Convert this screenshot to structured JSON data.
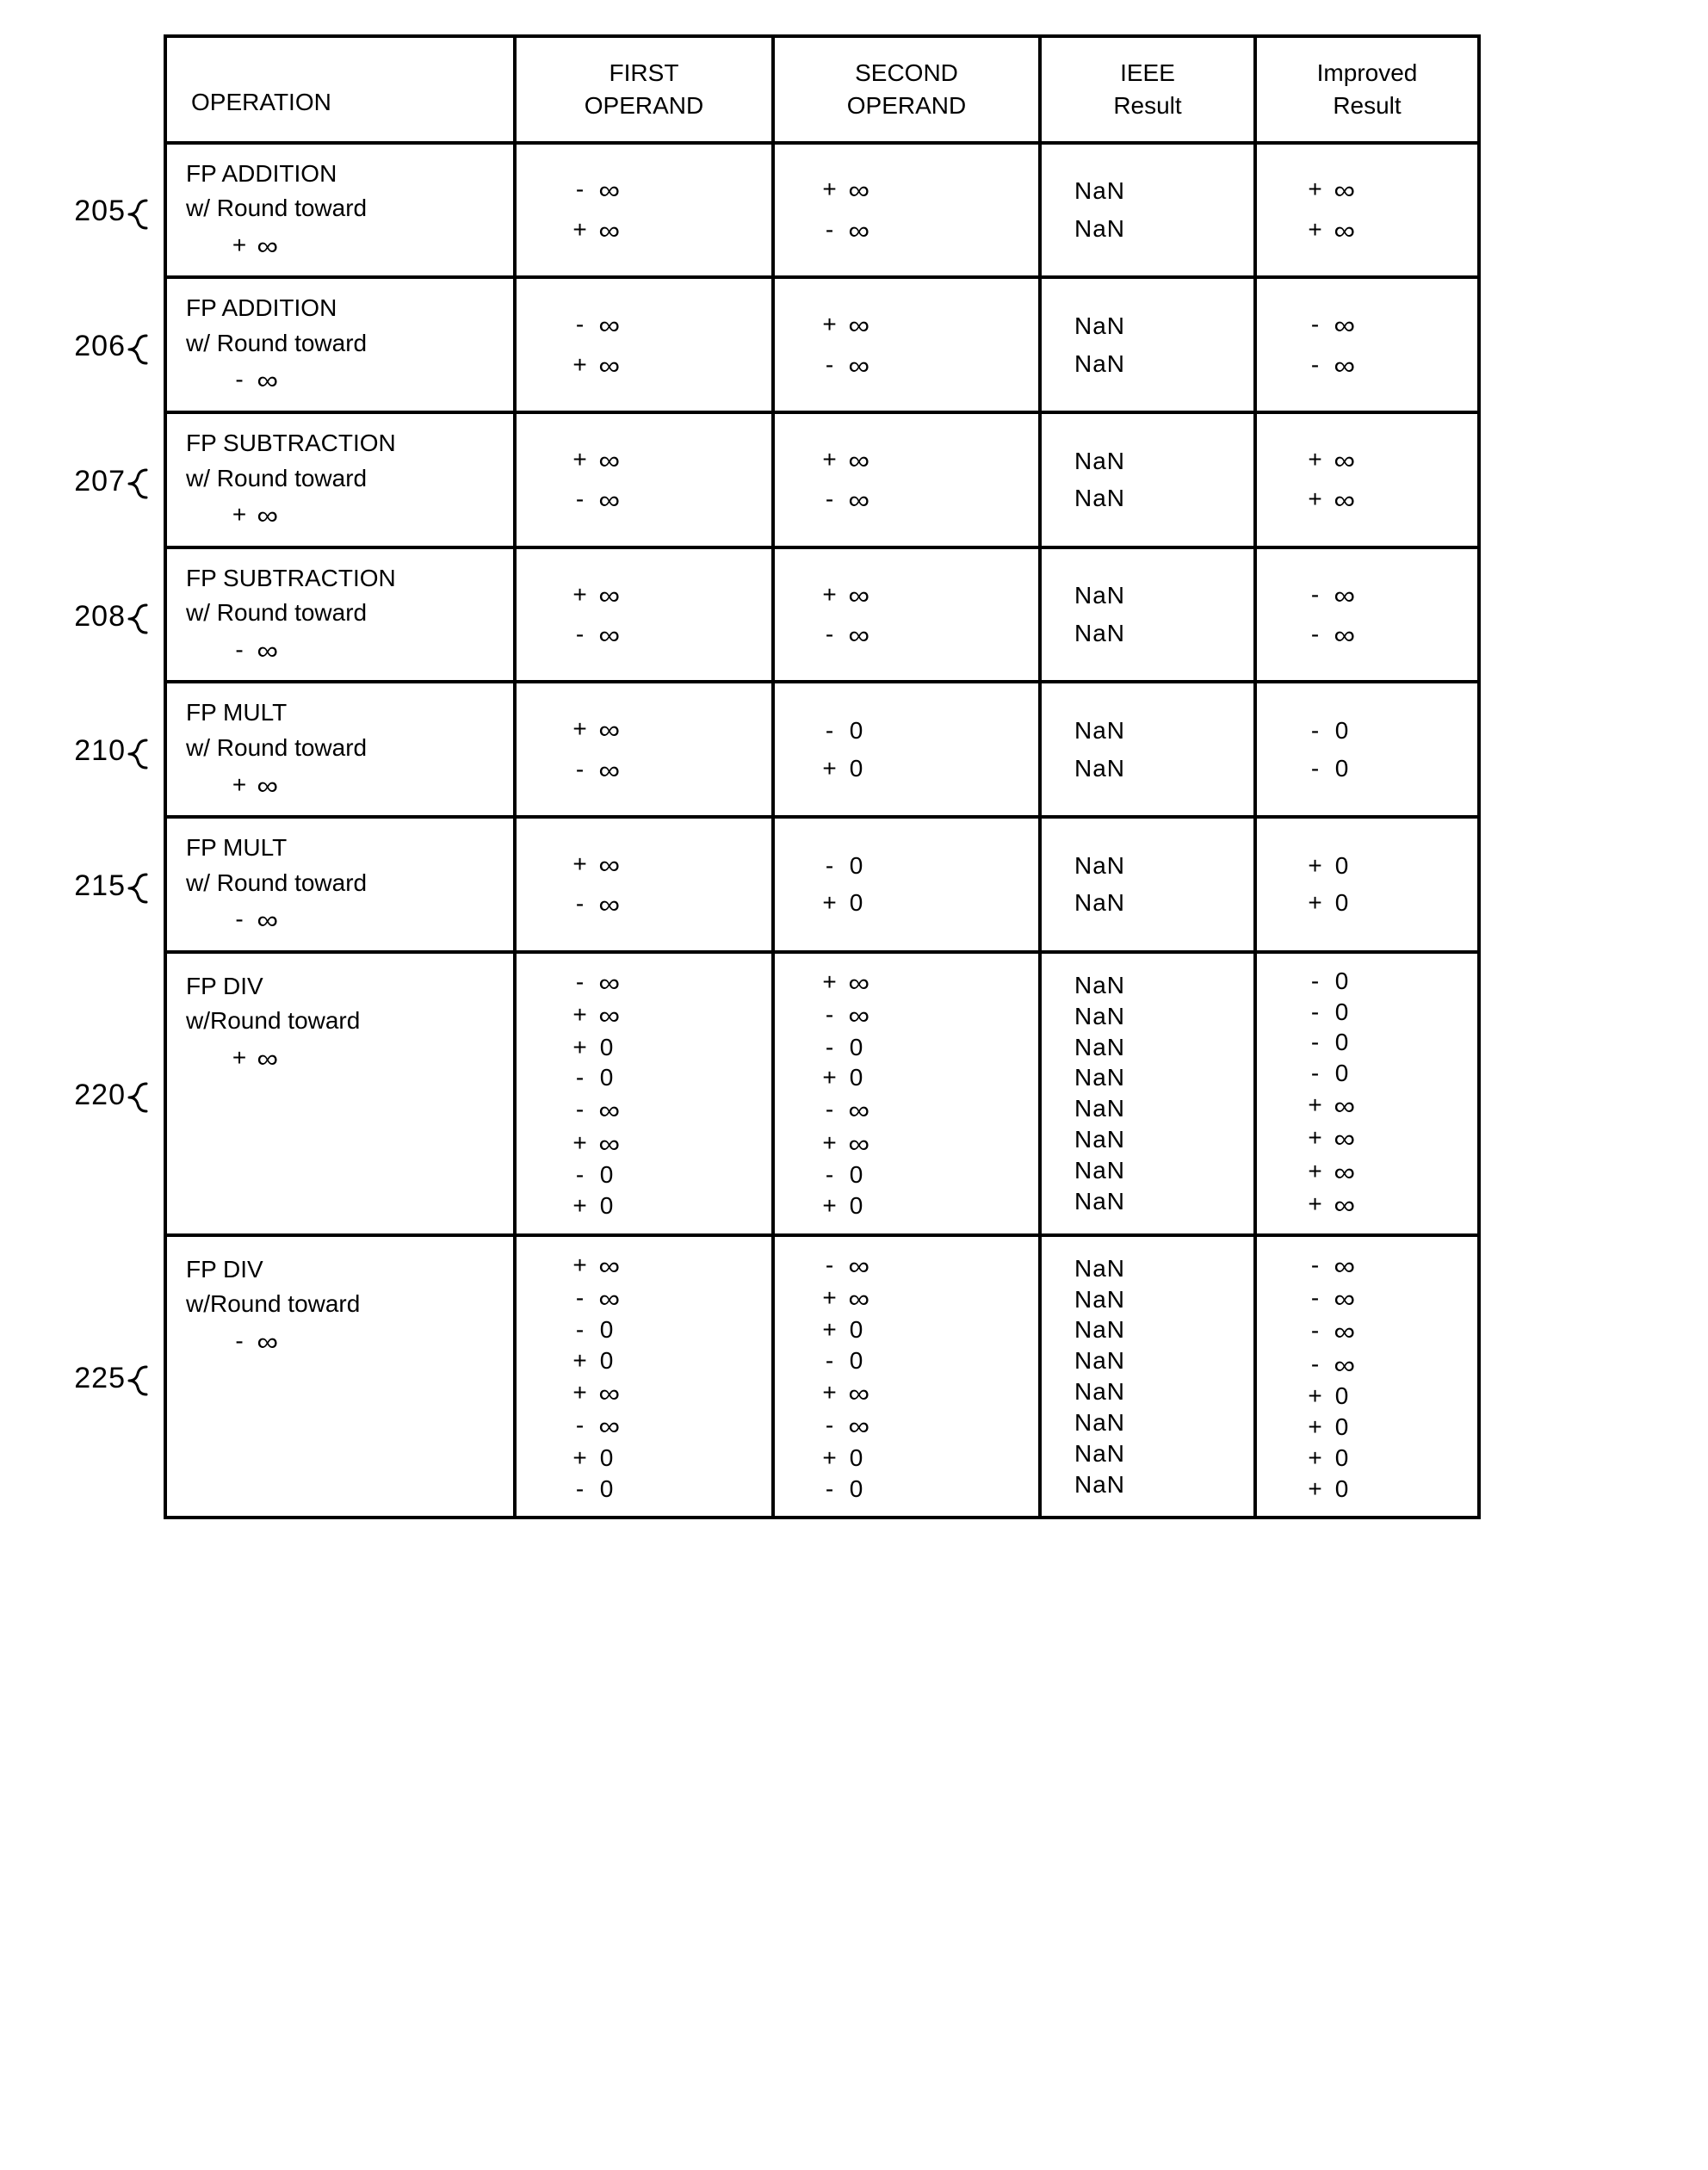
{
  "headers": {
    "operation": "OPERATION",
    "first": "FIRST\nOPERAND",
    "second": "SECOND\nOPERAND",
    "ieee": "IEEE\nResult",
    "improved": "Improved\nResult"
  },
  "rows": [
    {
      "label": "205",
      "operation": [
        "FP ADDITION",
        "w/ Round toward",
        "INF:+"
      ],
      "first": [
        "- ∞",
        "+ ∞"
      ],
      "second": [
        "+ ∞",
        "- ∞"
      ],
      "ieee": [
        "NaN",
        "NaN"
      ],
      "improved": [
        "+ ∞",
        "+ ∞"
      ]
    },
    {
      "label": "206",
      "operation": [
        "FP ADDITION",
        "w/ Round toward",
        "INF:-"
      ],
      "first": [
        "- ∞",
        "+ ∞"
      ],
      "second": [
        "+ ∞",
        "- ∞"
      ],
      "ieee": [
        "NaN",
        "NaN"
      ],
      "improved": [
        "- ∞",
        "- ∞"
      ]
    },
    {
      "label": "207",
      "operation": [
        "FP SUBTRACTION",
        "w/ Round toward",
        "INF:+"
      ],
      "first": [
        "+ ∞",
        "- ∞"
      ],
      "second": [
        "+ ∞",
        "- ∞"
      ],
      "ieee": [
        "NaN",
        "NaN"
      ],
      "improved": [
        "+ ∞",
        "+ ∞"
      ]
    },
    {
      "label": "208",
      "operation": [
        "FP SUBTRACTION",
        "w/ Round toward",
        "INF:-"
      ],
      "first": [
        "+ ∞",
        "- ∞"
      ],
      "second": [
        "+ ∞",
        "- ∞"
      ],
      "ieee": [
        "NaN",
        "NaN"
      ],
      "improved": [
        "- ∞",
        "- ∞"
      ]
    },
    {
      "label": "210",
      "operation": [
        "FP MULT",
        "w/ Round toward",
        "INF:+"
      ],
      "first": [
        "+ ∞",
        "- ∞"
      ],
      "second": [
        "- 0",
        "+ 0"
      ],
      "ieee": [
        "NaN",
        "NaN"
      ],
      "improved": [
        "- 0",
        "- 0"
      ]
    },
    {
      "label": "215",
      "operation": [
        "FP MULT",
        "w/ Round toward",
        "INF:-"
      ],
      "first": [
        "+ ∞",
        "- ∞"
      ],
      "second": [
        "- 0",
        "+ 0"
      ],
      "ieee": [
        "NaN",
        "NaN"
      ],
      "improved": [
        "+ 0",
        "+ 0"
      ]
    },
    {
      "label": "220",
      "tight": true,
      "operation": [
        "FP DIV",
        "w/Round toward",
        "INF:+"
      ],
      "first": [
        "- ∞",
        "+ ∞",
        "+ 0",
        "- 0",
        "- ∞",
        "+ ∞",
        "- 0",
        "+ 0"
      ],
      "second": [
        "+ ∞",
        "- ∞",
        "- 0",
        "+ 0",
        "- ∞",
        "+ ∞",
        "- 0",
        "+ 0"
      ],
      "ieee": [
        "NaN",
        "NaN",
        "NaN",
        "NaN",
        "NaN",
        "NaN",
        "NaN",
        "NaN"
      ],
      "improved": [
        "- 0",
        "- 0",
        "- 0",
        "- 0",
        "+ ∞",
        "+ ∞",
        "+ ∞",
        "+ ∞"
      ]
    },
    {
      "label": "225",
      "tight": true,
      "operation": [
        "FP DIV",
        "w/Round toward",
        "INF:-"
      ],
      "first": [
        "+ ∞",
        "- ∞",
        "- 0",
        "+ 0",
        "+ ∞",
        "- ∞",
        "+ 0",
        "- 0"
      ],
      "second": [
        "- ∞",
        "+ ∞",
        "+ 0",
        "- 0",
        "+ ∞",
        "- ∞",
        "+ 0",
        "- 0"
      ],
      "ieee": [
        "NaN",
        "NaN",
        "NaN",
        "NaN",
        "NaN",
        "NaN",
        "NaN",
        "NaN"
      ],
      "improved": [
        "- ∞",
        "- ∞",
        "- ∞",
        "- ∞",
        "+ 0",
        "+ 0",
        "+ 0",
        "+ 0"
      ]
    }
  ]
}
